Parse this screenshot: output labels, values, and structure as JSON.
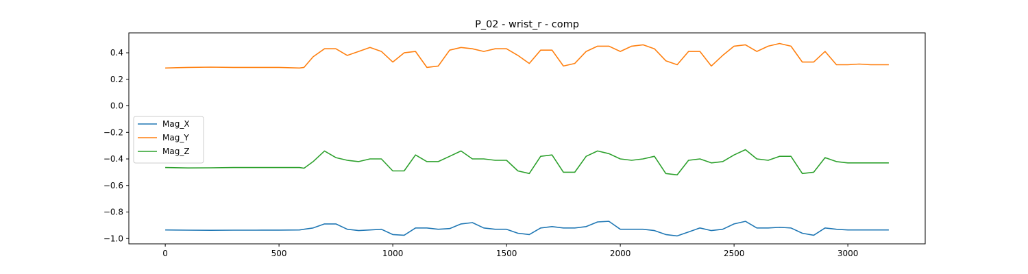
{
  "chart_data": {
    "type": "line",
    "title": "P_02 - wrist_r - comp",
    "xlabel": "",
    "ylabel": "",
    "xlim": [
      -160,
      3340
    ],
    "ylim": [
      -1.04,
      0.55
    ],
    "xticks": [
      0,
      500,
      1000,
      1500,
      2000,
      2500,
      3000
    ],
    "xtick_labels": [
      "0",
      "500",
      "1000",
      "1500",
      "2000",
      "2500",
      "3000"
    ],
    "yticks": [
      -1.0,
      -0.8,
      -0.6,
      -0.4,
      -0.2,
      0.0,
      0.2,
      0.4
    ],
    "ytick_labels": [
      "−1.0",
      "−0.8",
      "−0.6",
      "−0.4",
      "−0.2",
      "0.0",
      "0.2",
      "0.4"
    ],
    "grid": false,
    "legend_position": "center-left",
    "x": [
      0,
      100,
      200,
      300,
      400,
      500,
      590,
      610,
      650,
      700,
      750,
      800,
      850,
      900,
      950,
      1000,
      1050,
      1100,
      1150,
      1200,
      1250,
      1300,
      1350,
      1400,
      1450,
      1500,
      1550,
      1600,
      1650,
      1700,
      1750,
      1800,
      1850,
      1900,
      1950,
      2000,
      2050,
      2100,
      2150,
      2200,
      2250,
      2300,
      2350,
      2400,
      2450,
      2500,
      2550,
      2600,
      2650,
      2700,
      2750,
      2800,
      2850,
      2900,
      2950,
      3000,
      3050,
      3100,
      3180
    ],
    "series": [
      {
        "name": "Mag_X",
        "color": "#1f77b4",
        "values": [
          -0.935,
          -0.937,
          -0.938,
          -0.937,
          -0.937,
          -0.936,
          -0.935,
          -0.93,
          -0.92,
          -0.89,
          -0.89,
          -0.93,
          -0.94,
          -0.935,
          -0.93,
          -0.97,
          -0.975,
          -0.92,
          -0.92,
          -0.93,
          -0.925,
          -0.89,
          -0.88,
          -0.92,
          -0.93,
          -0.93,
          -0.96,
          -0.97,
          -0.92,
          -0.91,
          -0.92,
          -0.92,
          -0.91,
          -0.875,
          -0.87,
          -0.93,
          -0.93,
          -0.93,
          -0.94,
          -0.97,
          -0.98,
          -0.95,
          -0.92,
          -0.94,
          -0.93,
          -0.89,
          -0.87,
          -0.92,
          -0.92,
          -0.915,
          -0.92,
          -0.96,
          -0.975,
          -0.92,
          -0.93,
          -0.935,
          -0.935,
          -0.935,
          -0.935
        ]
      },
      {
        "name": "Mag_Y",
        "color": "#ff7f0e",
        "values": [
          0.285,
          0.29,
          0.292,
          0.29,
          0.29,
          0.29,
          0.285,
          0.29,
          0.37,
          0.43,
          0.43,
          0.38,
          0.41,
          0.44,
          0.41,
          0.33,
          0.4,
          0.41,
          0.29,
          0.3,
          0.42,
          0.44,
          0.43,
          0.41,
          0.43,
          0.43,
          0.38,
          0.32,
          0.42,
          0.42,
          0.3,
          0.32,
          0.41,
          0.45,
          0.45,
          0.41,
          0.45,
          0.46,
          0.43,
          0.34,
          0.31,
          0.41,
          0.41,
          0.3,
          0.38,
          0.45,
          0.46,
          0.41,
          0.45,
          0.47,
          0.45,
          0.33,
          0.33,
          0.41,
          0.31,
          0.31,
          0.315,
          0.31,
          0.31
        ]
      },
      {
        "name": "Mag_Z",
        "color": "#2ca02c",
        "values": [
          -0.465,
          -0.468,
          -0.467,
          -0.465,
          -0.465,
          -0.465,
          -0.465,
          -0.47,
          -0.42,
          -0.34,
          -0.39,
          -0.41,
          -0.42,
          -0.4,
          -0.4,
          -0.49,
          -0.49,
          -0.37,
          -0.42,
          -0.42,
          -0.38,
          -0.34,
          -0.4,
          -0.4,
          -0.41,
          -0.41,
          -0.49,
          -0.51,
          -0.38,
          -0.37,
          -0.5,
          -0.5,
          -0.38,
          -0.34,
          -0.36,
          -0.4,
          -0.41,
          -0.4,
          -0.38,
          -0.51,
          -0.52,
          -0.41,
          -0.4,
          -0.43,
          -0.42,
          -0.37,
          -0.33,
          -0.4,
          -0.41,
          -0.38,
          -0.38,
          -0.51,
          -0.5,
          -0.39,
          -0.42,
          -0.43,
          -0.43,
          -0.43,
          -0.43
        ]
      }
    ]
  }
}
